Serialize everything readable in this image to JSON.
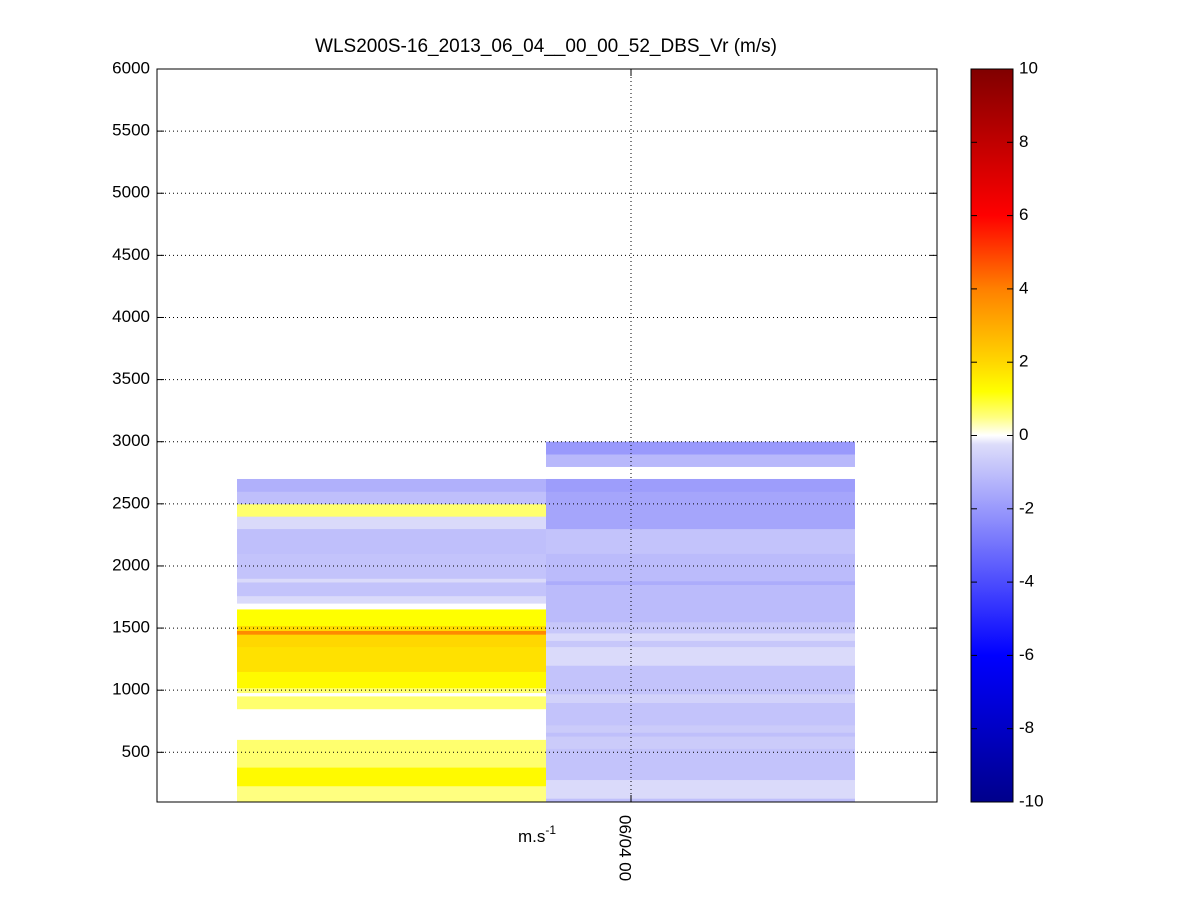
{
  "chart_data": {
    "type": "heatmap",
    "title": "WLS200S-16_2013_06_04__00_00_52_DBS_Vr (m/s)",
    "xlabel": "",
    "ylabel": "",
    "x_tick_labels": [
      "06/04 00"
    ],
    "unit_label": {
      "base": "m.s",
      "exp": "-1"
    },
    "ylim": [
      100,
      6000
    ],
    "yticks": [
      500,
      1000,
      1500,
      2000,
      2500,
      3000,
      3500,
      4000,
      4500,
      5000,
      5500,
      6000
    ],
    "grid": true,
    "colorbar": {
      "min": -10,
      "max": 10,
      "ticks": [
        -10,
        -8,
        -6,
        -4,
        -2,
        0,
        2,
        4,
        6,
        8,
        10
      ],
      "placement": "right",
      "stops": [
        {
          "v": -10,
          "c": "#00008b"
        },
        {
          "v": -6,
          "c": "#0000ff"
        },
        {
          "v": -0.25,
          "c": "#dcdcfa"
        },
        {
          "v": 0,
          "c": "#ffffff"
        },
        {
          "v": 0.5,
          "c": "#ffff80"
        },
        {
          "v": 1.2,
          "c": "#ffff00"
        },
        {
          "v": 2,
          "c": "#ffd700"
        },
        {
          "v": 4,
          "c": "#ff8000"
        },
        {
          "v": 6,
          "c": "#ff0000"
        },
        {
          "v": 10,
          "c": "#800000"
        }
      ]
    },
    "series": [
      {
        "x_range": [
          0,
          1
        ],
        "profile": [
          {
            "from": 100,
            "to": 150,
            "value": 0.5
          },
          {
            "from": 150,
            "to": 230,
            "value": 0.5
          },
          {
            "from": 230,
            "to": 380,
            "value": 1.3
          },
          {
            "from": 380,
            "to": 600,
            "value": 0.6
          },
          {
            "from": 850,
            "to": 950,
            "value": 0.6
          },
          {
            "from": 980,
            "to": 1020,
            "value": 0.6
          },
          {
            "from": 1020,
            "to": 1150,
            "value": 1.3
          },
          {
            "from": 1150,
            "to": 1350,
            "value": 1.8
          },
          {
            "from": 1350,
            "to": 1450,
            "value": 2.0
          },
          {
            "from": 1450,
            "to": 1480,
            "value": 3.8
          },
          {
            "from": 1480,
            "to": 1520,
            "value": 1.9
          },
          {
            "from": 1520,
            "to": 1650,
            "value": 1.2
          },
          {
            "from": 1700,
            "to": 1760,
            "value": -0.3
          },
          {
            "from": 1760,
            "to": 1870,
            "value": -0.9
          },
          {
            "from": 1870,
            "to": 1900,
            "value": -0.3
          },
          {
            "from": 1900,
            "to": 2100,
            "value": -0.9
          },
          {
            "from": 2100,
            "to": 2300,
            "value": -1.0
          },
          {
            "from": 2300,
            "to": 2400,
            "value": -0.3
          },
          {
            "from": 2400,
            "to": 2500,
            "value": 0.6
          },
          {
            "from": 2500,
            "to": 2600,
            "value": -1.0
          },
          {
            "from": 2600,
            "to": 2700,
            "value": -1.4
          }
        ]
      },
      {
        "x_range": [
          1,
          2
        ],
        "profile": [
          {
            "from": 100,
            "to": 130,
            "value": -1.0
          },
          {
            "from": 130,
            "to": 280,
            "value": -0.3
          },
          {
            "from": 280,
            "to": 530,
            "value": -0.9
          },
          {
            "from": 530,
            "to": 630,
            "value": -0.7
          },
          {
            "from": 630,
            "to": 660,
            "value": -1.0
          },
          {
            "from": 660,
            "to": 720,
            "value": -0.7
          },
          {
            "from": 720,
            "to": 900,
            "value": -0.9
          },
          {
            "from": 900,
            "to": 970,
            "value": -0.5
          },
          {
            "from": 970,
            "to": 1200,
            "value": -0.9
          },
          {
            "from": 1200,
            "to": 1350,
            "value": -0.3
          },
          {
            "from": 1350,
            "to": 1400,
            "value": -0.8
          },
          {
            "from": 1400,
            "to": 1460,
            "value": -0.3
          },
          {
            "from": 1460,
            "to": 1550,
            "value": -0.8
          },
          {
            "from": 1550,
            "to": 1850,
            "value": -1.1
          },
          {
            "from": 1850,
            "to": 1880,
            "value": -1.5
          },
          {
            "from": 1880,
            "to": 2100,
            "value": -1.1
          },
          {
            "from": 2100,
            "to": 2300,
            "value": -0.9
          },
          {
            "from": 2300,
            "to": 2600,
            "value": -1.7
          },
          {
            "from": 2600,
            "to": 2700,
            "value": -1.9
          },
          {
            "from": 2800,
            "to": 2900,
            "value": -1.2
          },
          {
            "from": 2900,
            "to": 3000,
            "value": -2.0
          }
        ]
      }
    ]
  }
}
